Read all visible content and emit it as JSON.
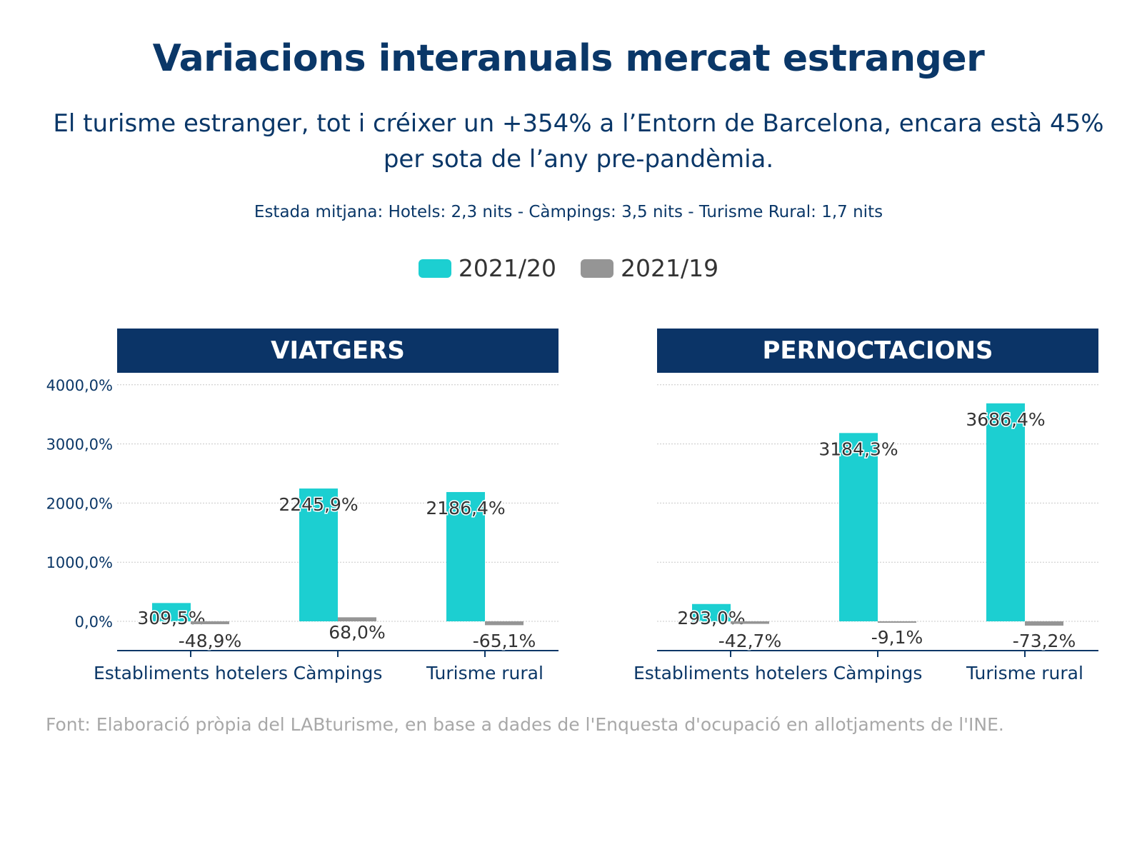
{
  "title": "Variacions interanuals mercat estranger",
  "subtitle": "El turisme estranger, tot i créixer un +354% a l’Entorn de Barcelona, encara està 45% per sota de l’any pre-pandèmia.",
  "note": "Estada mitjana: Hotels: 2,3 nits - Càmpings: 3,5 nits - Turisme Rural: 1,7 nits",
  "legend": [
    {
      "label": "2021/20",
      "color": "#1ccfd1"
    },
    {
      "label": "2021/19",
      "color": "#959595"
    }
  ],
  "source": "Font: Elaboració pròpia del LABturisme, en base a dades de l'Enquesta d'ocupació en allotjaments de l'INE.",
  "chart_data": [
    {
      "type": "bar",
      "title": "VIATGERS",
      "categories": [
        "Establiments hotelers",
        "Càmpings",
        "Turisme rural"
      ],
      "series": [
        {
          "name": "2021/20",
          "values": [
            309.5,
            2245.9,
            2186.4
          ],
          "labels": [
            "309,5%",
            "2245,9%",
            "2186,4%"
          ]
        },
        {
          "name": "2021/19",
          "values": [
            -48.9,
            68.0,
            -65.1
          ],
          "labels": [
            "-48,9%",
            "68,0%",
            "-65,1%"
          ]
        }
      ],
      "yticks": [
        "4000,0%",
        "3000,0%",
        "2000,0%",
        "1000,0%",
        "0,0%"
      ],
      "ylim": [
        -500,
        4000
      ],
      "grid": true
    },
    {
      "type": "bar",
      "title": "PERNOCTACIONS",
      "categories": [
        "Establiments hotelers",
        "Càmpings",
        "Turisme rural"
      ],
      "series": [
        {
          "name": "2021/20",
          "values": [
            293.0,
            3184.3,
            3686.4
          ],
          "labels": [
            "293,0%",
            "3184,3%",
            "3686,4%"
          ]
        },
        {
          "name": "2021/19",
          "values": [
            -42.7,
            -9.1,
            -73.2
          ],
          "labels": [
            "-42,7%",
            "-9,1%",
            "-73,2%"
          ]
        }
      ],
      "ylim": [
        -500,
        4000
      ],
      "grid": true
    }
  ]
}
